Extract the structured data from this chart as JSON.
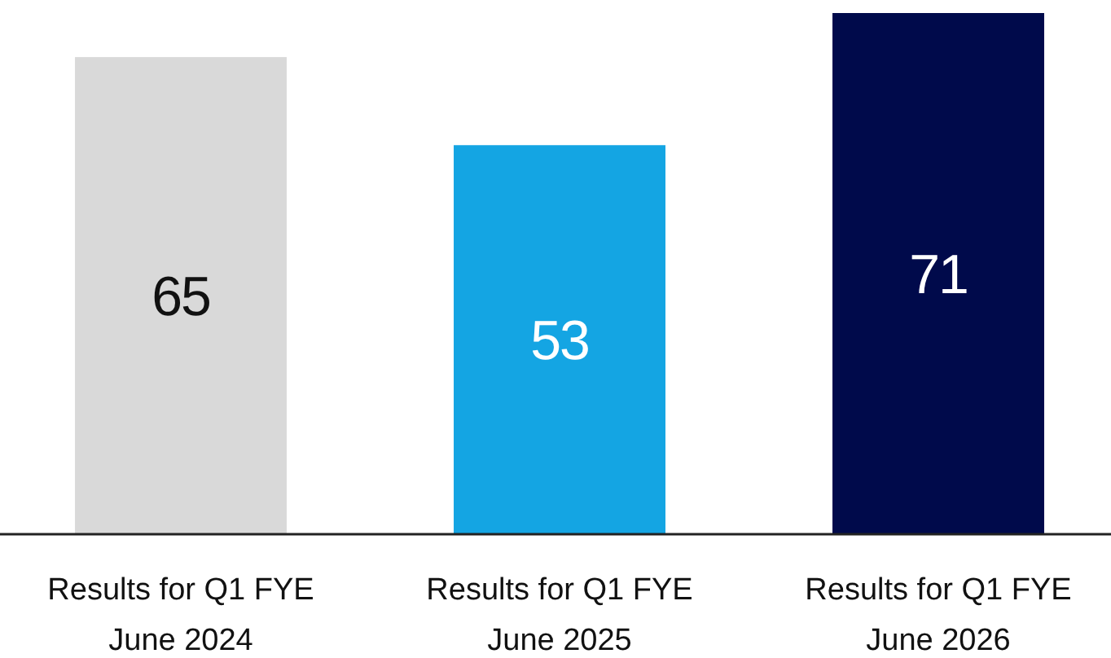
{
  "chart_data": {
    "type": "bar",
    "categories": [
      "Results for Q1 FYE\nJune 2024",
      "Results for Q1 FYE\nJune 2025",
      "Results for Q1 FYE\nJune 2026"
    ],
    "values": [
      65,
      53,
      71
    ],
    "colors": [
      "#d9d9d9",
      "#14a5e3",
      "#000a4b"
    ],
    "data_labels": true
  }
}
